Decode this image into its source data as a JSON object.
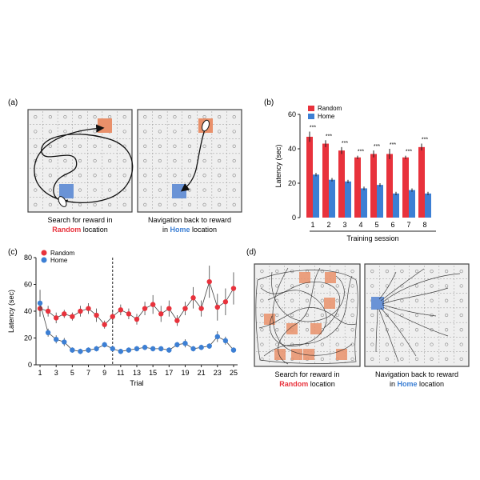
{
  "colors": {
    "random": "#e8323c",
    "home": "#3c7fd4",
    "arena_bg": "#efefef",
    "reward_random": "#e9906a",
    "reward_home": "#6a93d6"
  },
  "panels": {
    "a": {
      "label": "(a)",
      "arena_left": {
        "caption_line1": "Search for reward in",
        "caption_line2_highlight": "Random",
        "caption_line2_rest": " location"
      },
      "arena_right": {
        "caption_line1": "Navigation back to reward",
        "caption_line2_pre": "in ",
        "caption_line2_highlight": "Home",
        "caption_line2_rest": " location"
      }
    },
    "d": {
      "label": "(d)",
      "arena_left": {
        "caption_line1": "Search for reward in",
        "caption_line2_highlight": "Random",
        "caption_line2_rest": " location"
      },
      "arena_right": {
        "caption_line1": "Navigation back to reward",
        "caption_line2_pre": "in ",
        "caption_line2_highlight": "Home",
        "caption_line2_rest": " location"
      }
    }
  },
  "chart_data": [
    {
      "panel": "(b)",
      "type": "bar",
      "xlabel": "Training session",
      "ylabel": "Latency (sec)",
      "ylim": [
        0,
        60
      ],
      "yticks": [
        0,
        20,
        40,
        60
      ],
      "categories": [
        "1",
        "2",
        "3",
        "4",
        "5",
        "6",
        "7",
        "8"
      ],
      "legend_position": "top-left",
      "series": [
        {
          "name": "Random",
          "color": "#e8323c",
          "values": [
            47,
            43,
            39,
            35,
            37,
            37,
            35,
            41
          ],
          "errors": [
            3,
            2,
            2,
            1,
            2,
            3,
            1,
            2
          ]
        },
        {
          "name": "Home",
          "color": "#3c7fd4",
          "values": [
            25,
            22,
            21,
            17,
            19,
            14,
            16,
            14
          ],
          "errors": [
            1,
            1,
            1,
            1,
            1,
            1,
            1,
            1
          ]
        }
      ],
      "annotations": [
        "***",
        "***",
        "***",
        "***",
        "***",
        "***",
        "***",
        "***"
      ]
    },
    {
      "panel": "(c)",
      "type": "line",
      "xlabel": "Trial",
      "ylabel": "Latency (sec)",
      "ylim": [
        0,
        80
      ],
      "yticks": [
        0,
        20,
        40,
        60,
        80
      ],
      "xticks": [
        1,
        3,
        5,
        7,
        9,
        11,
        13,
        15,
        17,
        19,
        21,
        23,
        25
      ],
      "x": [
        1,
        2,
        3,
        4,
        5,
        6,
        7,
        8,
        9,
        10,
        11,
        12,
        13,
        14,
        15,
        16,
        17,
        18,
        19,
        20,
        21,
        22,
        23,
        24,
        25
      ],
      "divider_x": 10,
      "legend_position": "top-left",
      "series": [
        {
          "name": "Random",
          "color": "#e8323c",
          "values": [
            42,
            40,
            35,
            38,
            36,
            40,
            42,
            37,
            30,
            36,
            41,
            38,
            34,
            42,
            45,
            38,
            42,
            33,
            42,
            50,
            42,
            62,
            43,
            47,
            57
          ],
          "errors": [
            6,
            4,
            4,
            3,
            3,
            4,
            4,
            5,
            3,
            4,
            4,
            4,
            4,
            5,
            7,
            6,
            6,
            4,
            5,
            8,
            6,
            12,
            10,
            10,
            12
          ]
        },
        {
          "name": "Home",
          "color": "#3c7fd4",
          "values": [
            46,
            24,
            19,
            17,
            11,
            10,
            11,
            12,
            15,
            12,
            10,
            11,
            12,
            13,
            12,
            12,
            11,
            15,
            16,
            12,
            13,
            14,
            21,
            18,
            11
          ],
          "errors": [
            10,
            3,
            3,
            3,
            2,
            2,
            2,
            2,
            2,
            2,
            2,
            2,
            2,
            2,
            2,
            2,
            2,
            2,
            3,
            2,
            2,
            2,
            4,
            3,
            2
          ]
        }
      ]
    }
  ]
}
